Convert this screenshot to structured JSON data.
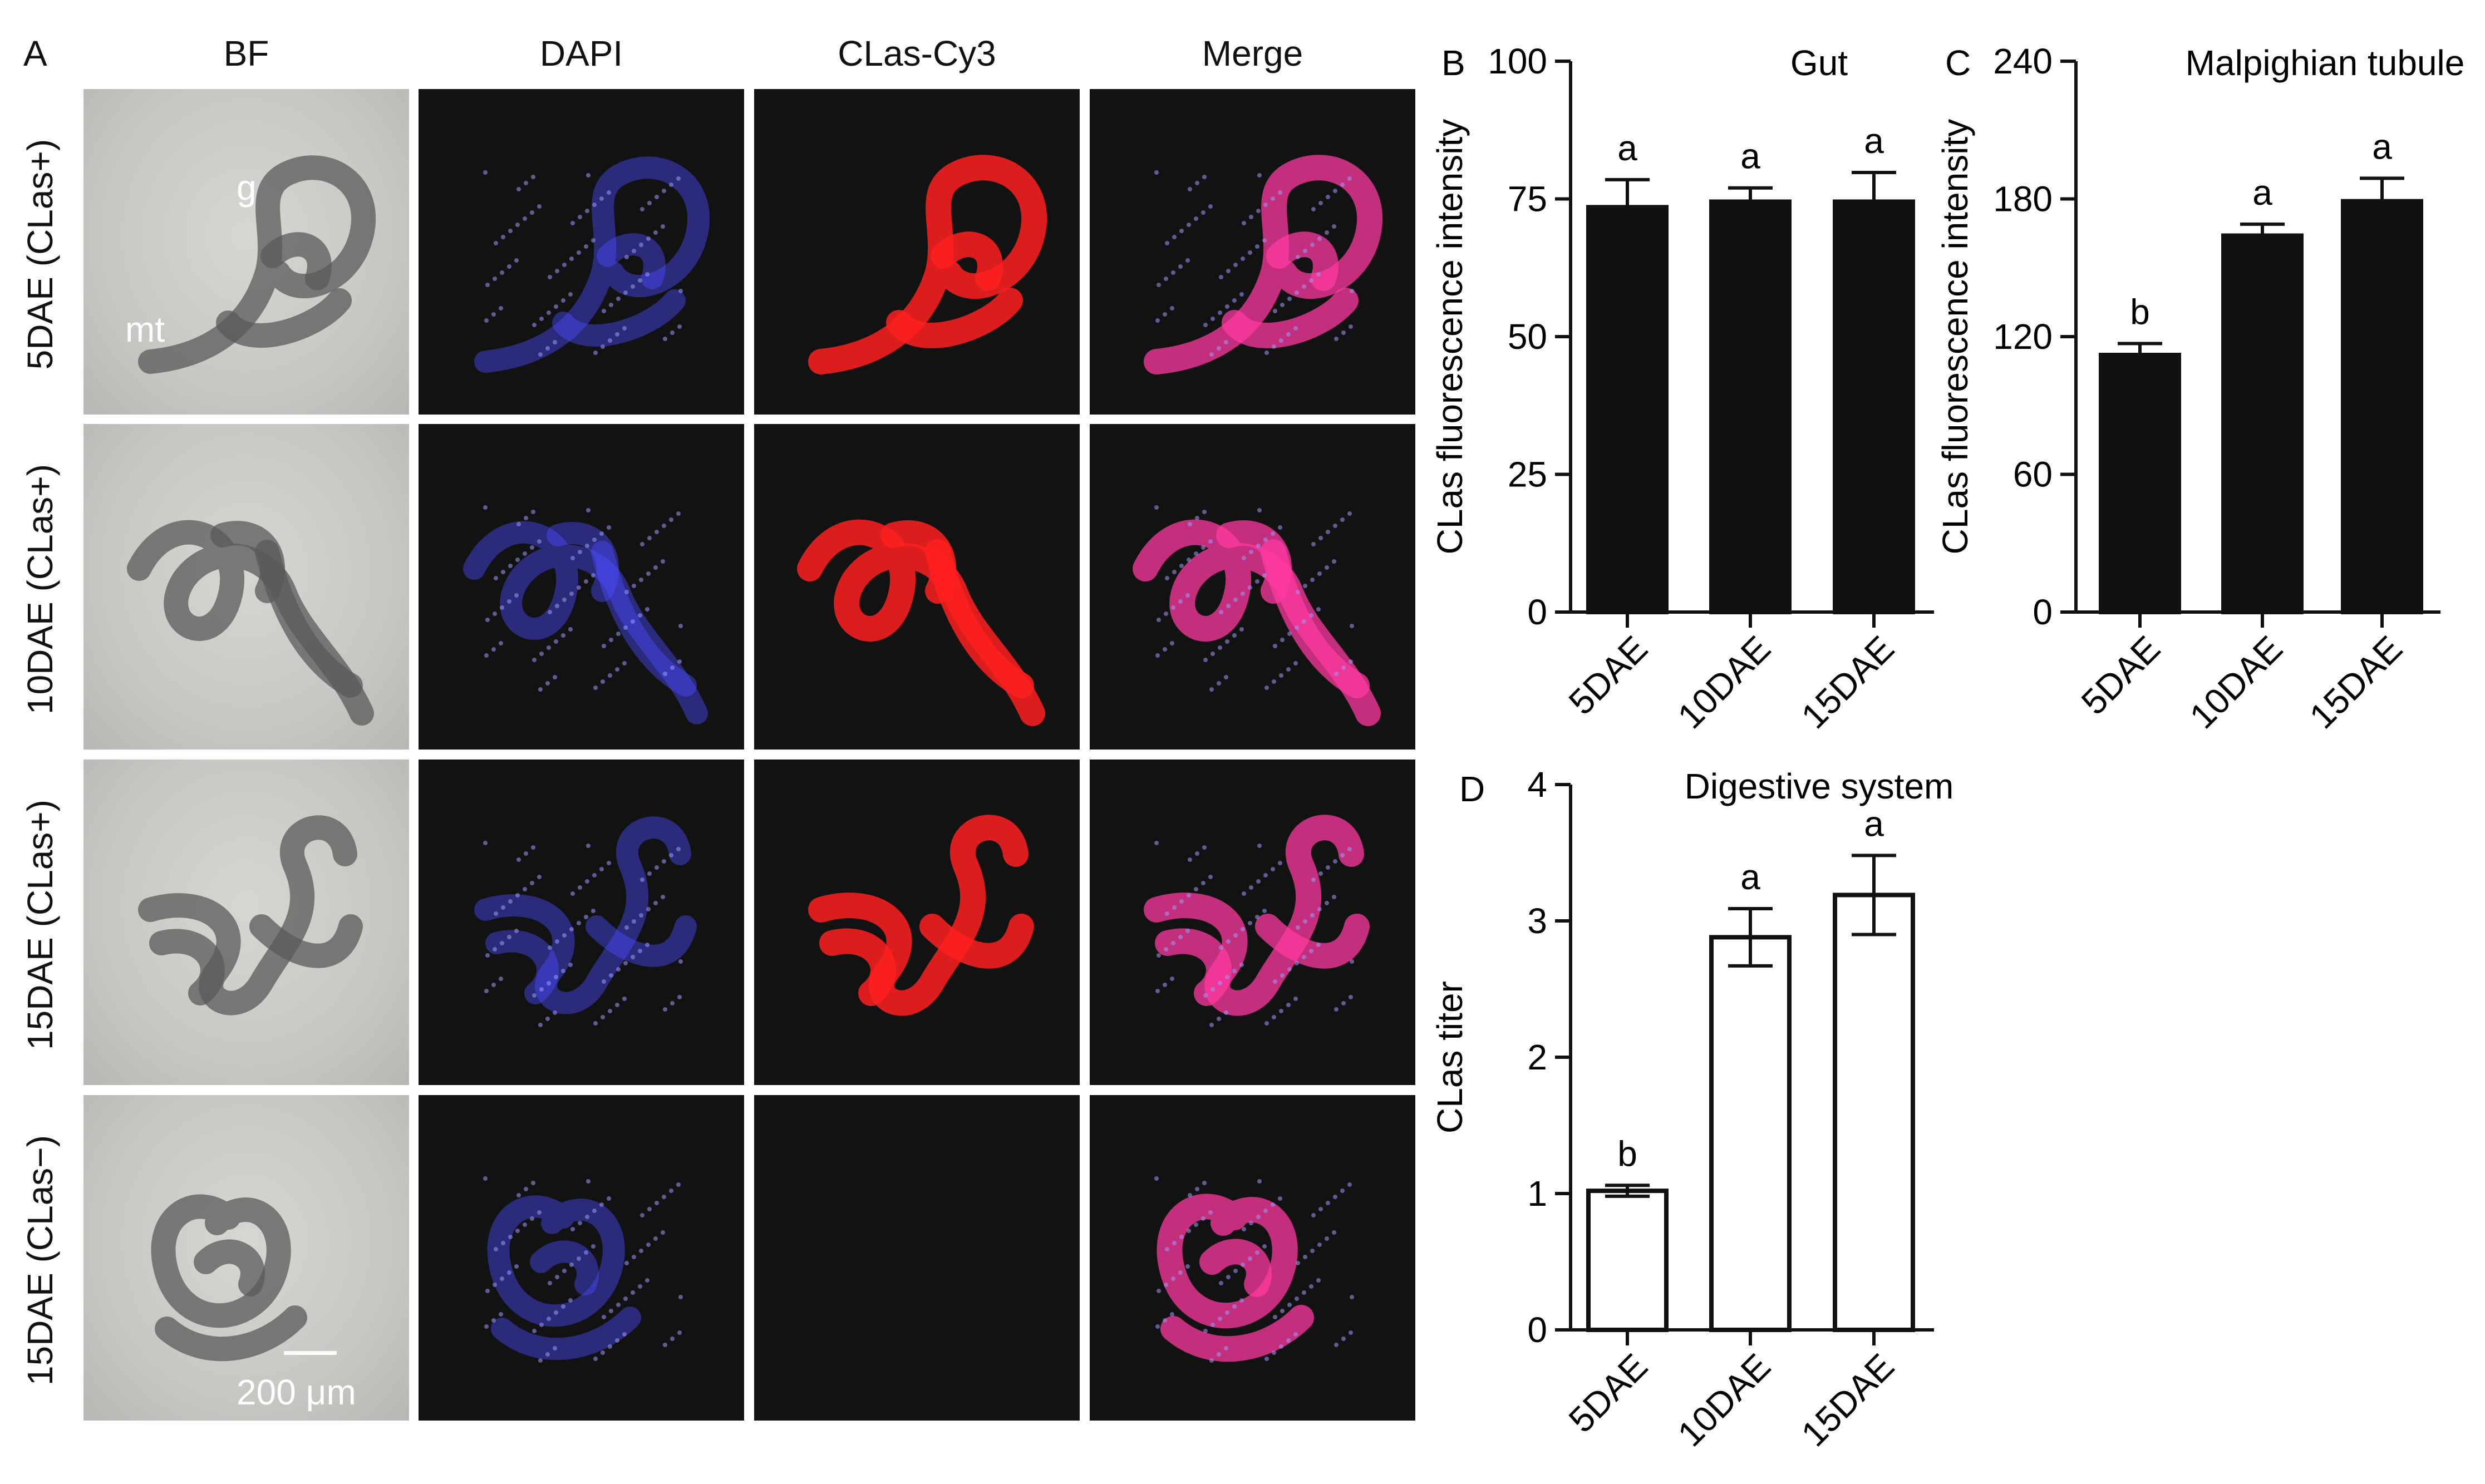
{
  "figure": {
    "panel_a_letter": "A",
    "columns": [
      "BF",
      "DAPI",
      "CLas-Cy3",
      "Merge"
    ],
    "rows": [
      "5DAE (CLas+)",
      "10DAE (CLas+)",
      "15DAE (CLas+)",
      "15DAE (CLas−)"
    ],
    "annotations": {
      "gut": "g",
      "malpighian": "mt"
    },
    "scale_bar": "200 μm"
  },
  "colors": {
    "dapi": "#4b4bff",
    "cy3": "#ff2020",
    "merge": "#ff3aa0",
    "bf_tissue": "#5a5a5a",
    "panel_dark": "#121212"
  },
  "chart_data": [
    {
      "panel": "B",
      "type": "bar",
      "title": "Gut",
      "ylabel": "CLas fluorescence intensity",
      "categories": [
        "5DAE",
        "10DAE",
        "15DAE"
      ],
      "values": [
        73.5,
        74.5,
        74.5
      ],
      "errors": [
        5,
        2.5,
        5.3
      ],
      "letters": [
        "a",
        "a",
        "a"
      ],
      "ylim": [
        0,
        100
      ],
      "yticks": [
        0,
        25,
        50,
        75,
        100
      ],
      "bar_fill": "#111111"
    },
    {
      "panel": "C",
      "type": "bar",
      "title": "Malpighian tubule",
      "ylabel": "CLas fluorescence intensity",
      "categories": [
        "5DAE",
        "10DAE",
        "15DAE"
      ],
      "values": [
        112,
        164,
        179
      ],
      "errors": [
        5,
        5,
        10
      ],
      "letters": [
        "b",
        "a",
        "a"
      ],
      "ylim": [
        0,
        240
      ],
      "yticks": [
        0,
        60,
        120,
        180,
        240
      ],
      "bar_fill": "#111111"
    },
    {
      "panel": "D",
      "type": "bar",
      "title": "Digestive system",
      "ylabel": "CLas titer",
      "categories": [
        "5DAE",
        "10DAE",
        "15DAE"
      ],
      "values": [
        1.02,
        2.88,
        3.19
      ],
      "errors": [
        0.04,
        0.21,
        0.29
      ],
      "letters": [
        "b",
        "a",
        "a"
      ],
      "ylim": [
        0,
        4
      ],
      "yticks": [
        0,
        1,
        2,
        3,
        4
      ],
      "bar_fill": "#ffffff"
    }
  ]
}
